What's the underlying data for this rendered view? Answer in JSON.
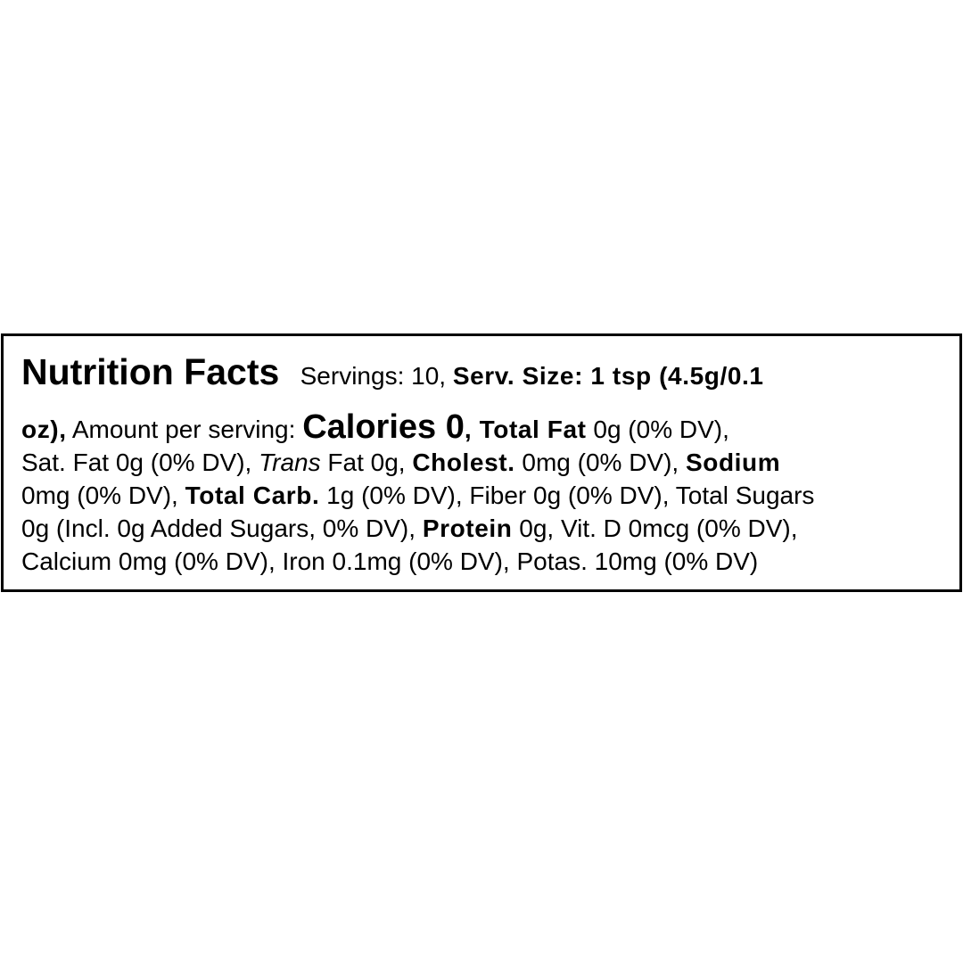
{
  "label": {
    "lines": [
      [
        {
          "t": "Nutrition Facts",
          "s": "title"
        },
        {
          "t": "   Servings: 10, ",
          "s": ""
        },
        {
          "t": "Serv. Size: 1 tsp (4.5g/0.1",
          "s": "b"
        }
      ],
      [
        {
          "t": "oz),",
          "s": "b"
        },
        {
          "t": " Amount per serving: ",
          "s": ""
        },
        {
          "t": "Calories 0",
          "s": "cal"
        },
        {
          "t": ", ",
          "s": "b"
        },
        {
          "t": "Total Fat",
          "s": "b"
        },
        {
          "t": " 0g (0% DV),",
          "s": ""
        }
      ],
      [
        {
          "t": "Sat. Fat 0g (0% DV), ",
          "s": ""
        },
        {
          "t": "Trans",
          "s": "i"
        },
        {
          "t": " Fat 0g, ",
          "s": ""
        },
        {
          "t": "Cholest.",
          "s": "b"
        },
        {
          "t": " 0mg (0% DV), ",
          "s": ""
        },
        {
          "t": "Sodium",
          "s": "b"
        }
      ],
      [
        {
          "t": "0mg (0% DV), ",
          "s": ""
        },
        {
          "t": "Total Carb.",
          "s": "b"
        },
        {
          "t": " 1g (0% DV), Fiber 0g (0% DV), Total Sugars",
          "s": ""
        }
      ],
      [
        {
          "t": "0g (Incl. 0g Added Sugars, 0% DV), ",
          "s": ""
        },
        {
          "t": "Protein",
          "s": "b"
        },
        {
          "t": " 0g, Vit. D 0mcg (0% DV),",
          "s": ""
        }
      ],
      [
        {
          "t": "Calcium 0mg (0% DV), Iron 0.1mg (0% DV), Potas. 10mg (0% DV)",
          "s": ""
        }
      ]
    ]
  }
}
